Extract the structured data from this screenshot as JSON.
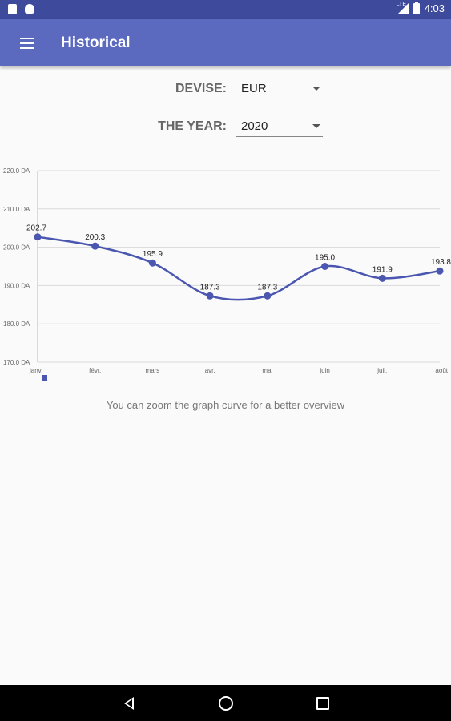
{
  "status_bar": {
    "time": "4:03",
    "network": "LTE"
  },
  "app_bar": {
    "title": "Historical"
  },
  "filters": {
    "devise_label": "DEVISE:",
    "devise_value": "EUR",
    "year_label": "THE YEAR:",
    "year_value": "2020"
  },
  "chart_data": {
    "type": "line",
    "categories": [
      "janv.",
      "févr.",
      "mars",
      "avr.",
      "mai",
      "juin",
      "juil.",
      "août"
    ],
    "values": [
      202.7,
      200.3,
      195.9,
      187.3,
      187.3,
      195.0,
      191.9,
      193.8
    ],
    "data_labels": [
      "202.7",
      "200.3",
      "195.9",
      "187.3",
      "187.3",
      "195.0",
      "191.9",
      "193.8"
    ],
    "y_ticks": [
      170,
      180,
      190,
      200,
      210,
      220
    ],
    "y_tick_labels": [
      "170.0 DA",
      "180.0 DA",
      "190.0 DA",
      "200.0 DA",
      "210.0 DA",
      "220.0 DA"
    ],
    "ylim": [
      170,
      220
    ],
    "grid": "horizontal",
    "legend": "bottom-left",
    "line_color": "#4a56b0"
  },
  "hint": {
    "text": "You can zoom the graph curve for a better overview"
  },
  "colors": {
    "app_bar": "#5b6abf",
    "status_bar": "#3e4a9c",
    "accent": "#4a56b0"
  }
}
